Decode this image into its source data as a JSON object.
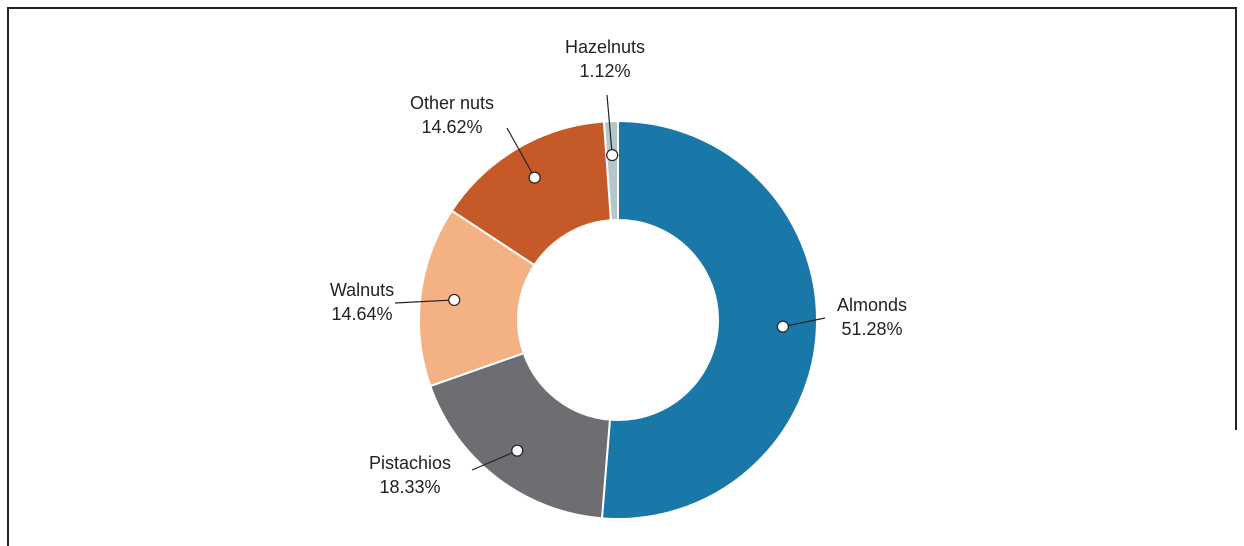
{
  "chart_data": {
    "type": "donut",
    "categories": [
      "Almonds",
      "Pistachios",
      "Walnuts",
      "Other nuts",
      "Hazelnuts"
    ],
    "values": [
      51.28,
      18.33,
      14.64,
      14.62,
      1.12
    ],
    "value_labels": [
      "51.28%",
      "18.33%",
      "14.64%",
      "14.62%",
      "1.12%"
    ],
    "colors": [
      "#1a78a8",
      "#6d6e71",
      "#f4b183",
      "#c55a28",
      "#b4c7cc"
    ]
  }
}
